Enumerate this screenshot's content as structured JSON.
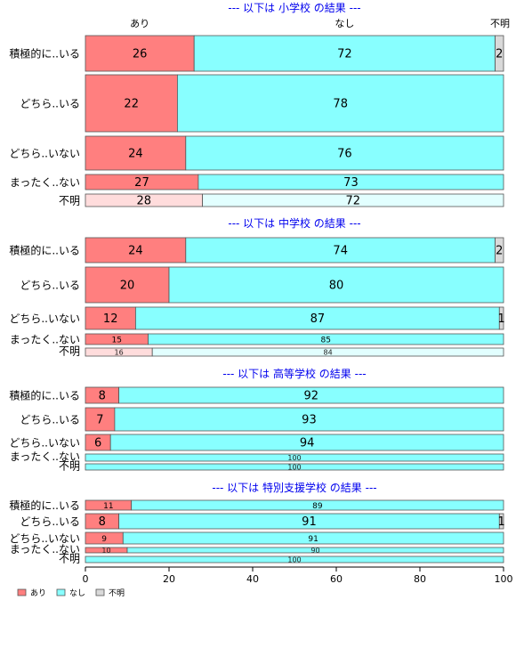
{
  "chart_data": {
    "type": "bar",
    "orientation": "horizontal-stacked-percent",
    "legend_position": "bottom-left",
    "xlim": [
      0,
      100
    ],
    "x_ticks": [
      0,
      20,
      40,
      60,
      80,
      100
    ],
    "column_headers": [
      "あり",
      "なし",
      "不明"
    ],
    "legend": [
      {
        "name": "あり",
        "color": "#ff7f7f"
      },
      {
        "name": "なし",
        "color": "#88ffff"
      },
      {
        "name": "不明",
        "color": "#d9d9d9"
      }
    ],
    "panels": [
      {
        "title": "--- 以下は 小学校 の結果 ---",
        "rows": [
          {
            "label": "積極的に..いる",
            "values": [
              26,
              72,
              2
            ]
          },
          {
            "label": "どちら..いる",
            "values": [
              22,
              78,
              0
            ]
          },
          {
            "label": "どちら..いない",
            "values": [
              24,
              76,
              0
            ]
          },
          {
            "label": "まったく..ない",
            "values": [
              27,
              73,
              0
            ]
          },
          {
            "label": "不明",
            "values": [
              28,
              72,
              0
            ]
          }
        ]
      },
      {
        "title": "--- 以下は 中学校 の結果 ---",
        "rows": [
          {
            "label": "積極的に..いる",
            "values": [
              24,
              74,
              2
            ]
          },
          {
            "label": "どちら..いる",
            "values": [
              20,
              80,
              0
            ]
          },
          {
            "label": "どちら..いない",
            "values": [
              12,
              87,
              1
            ]
          },
          {
            "label": "まったく..ない",
            "values": [
              15,
              85,
              0
            ]
          },
          {
            "label": "不明",
            "values": [
              16,
              84,
              0
            ]
          }
        ]
      },
      {
        "title": "--- 以下は 高等学校 の結果 ---",
        "rows": [
          {
            "label": "積極的に..いる",
            "values": [
              8,
              92,
              0
            ]
          },
          {
            "label": "どちら..いる",
            "values": [
              7,
              93,
              0
            ]
          },
          {
            "label": "どちら..いない",
            "values": [
              6,
              94,
              0
            ]
          },
          {
            "label": "まったく..ない",
            "values": [
              0,
              100,
              0
            ]
          },
          {
            "label": "不明",
            "values": [
              0,
              100,
              0
            ]
          }
        ]
      },
      {
        "title": "--- 以下は 特別支援学校 の結果 ---",
        "rows": [
          {
            "label": "積極的に..いる",
            "values": [
              11,
              89,
              0
            ]
          },
          {
            "label": "どちら..いる",
            "values": [
              8,
              91,
              1
            ]
          },
          {
            "label": "どちら..いない",
            "values": [
              9,
              91,
              0
            ]
          },
          {
            "label": "まったく..ない",
            "values": [
              10,
              90,
              0
            ]
          },
          {
            "label": "不明",
            "values": [
              0,
              100,
              0
            ]
          }
        ]
      }
    ]
  }
}
